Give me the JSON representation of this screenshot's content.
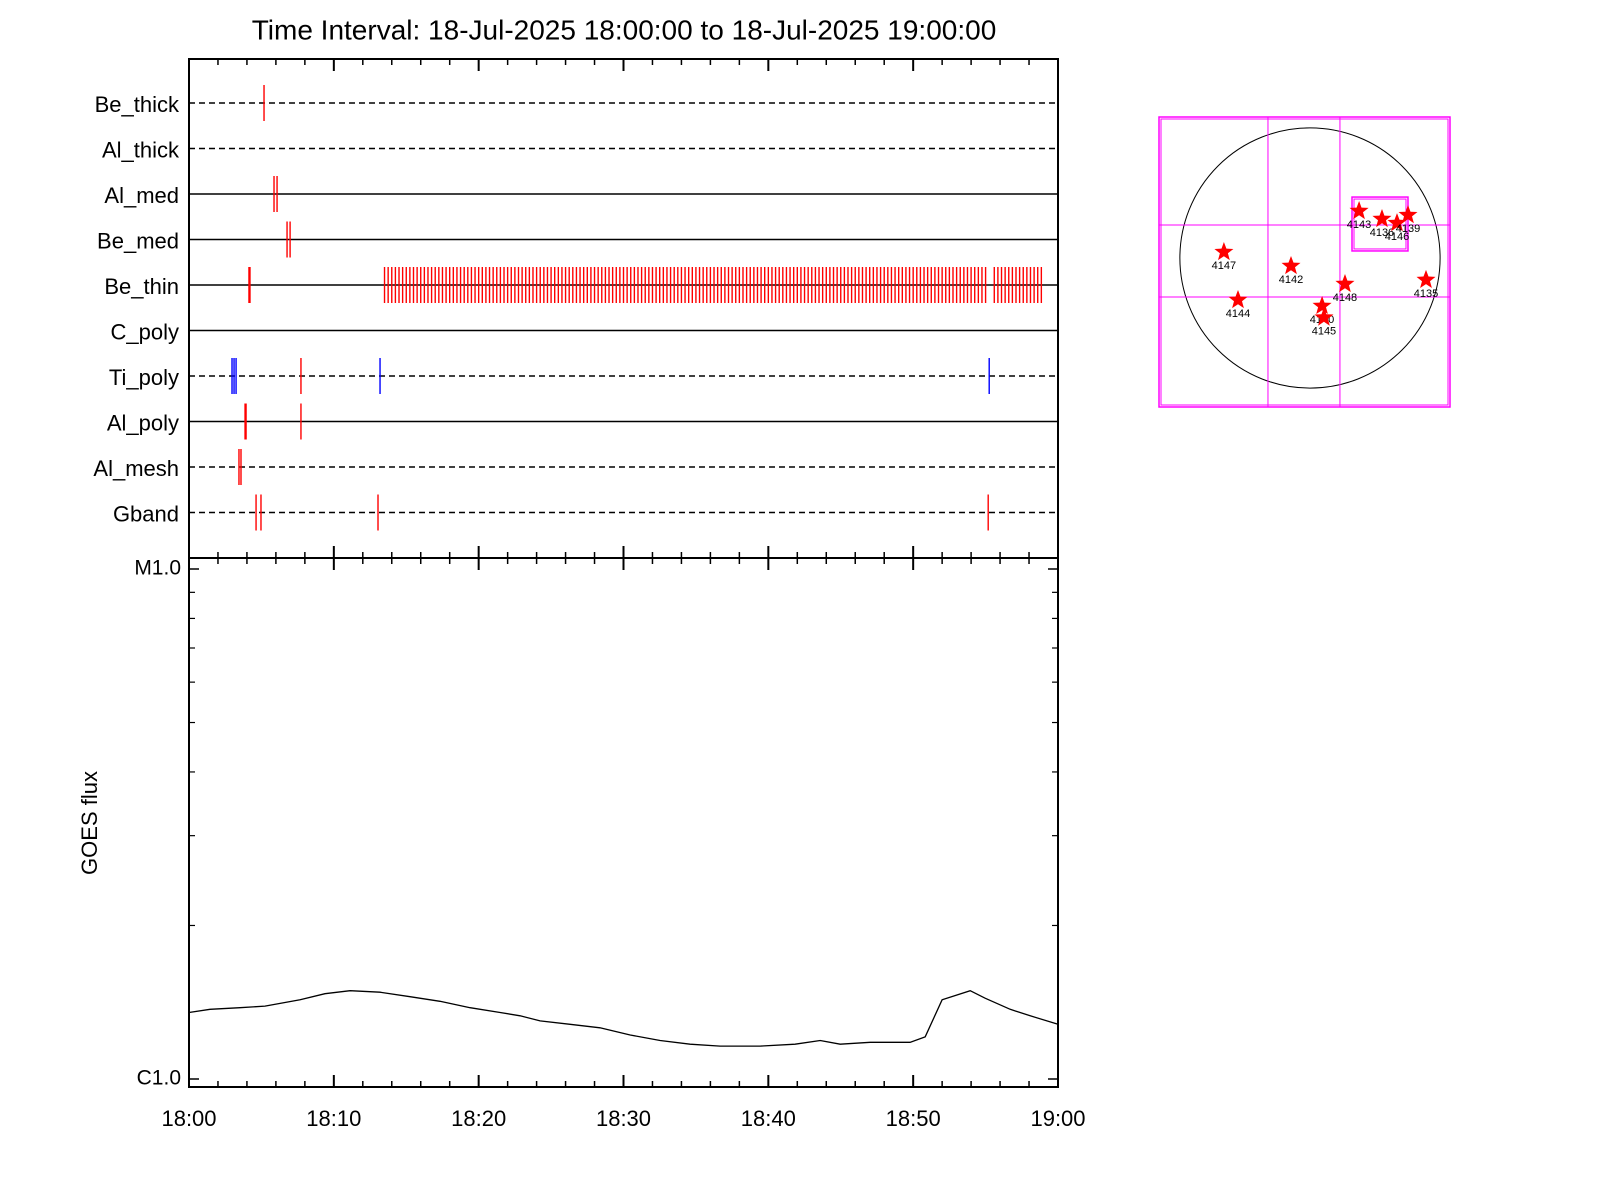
{
  "chart_data": [
    {
      "type": "timeline",
      "title": "Time Interval: 18-Jul-2025 18:00:00 to 18-Jul-2025 19:00:00",
      "xlim": [
        0,
        60
      ],
      "xticks": [
        0,
        10,
        20,
        30,
        40,
        50,
        60
      ],
      "xminorticks": [
        2,
        4,
        6,
        8,
        12,
        14,
        16,
        18,
        22,
        24,
        26,
        28,
        32,
        34,
        36,
        38,
        42,
        44,
        46,
        48,
        52,
        54,
        56,
        58
      ],
      "rows": [
        {
          "name": "Be_thick",
          "line": "dashed",
          "events": [
            {
              "color": "#ff0000",
              "times": [
                5.18
              ]
            }
          ]
        },
        {
          "name": "Al_thick",
          "line": "dashed",
          "events": []
        },
        {
          "name": "Al_med",
          "line": "solid",
          "events": [
            {
              "color": "#ff0000",
              "times": [
                5.87,
                6.08
              ]
            }
          ]
        },
        {
          "name": "Be_med",
          "line": "solid",
          "events": [
            {
              "color": "#ff0000",
              "times": [
                6.77,
                6.98
              ]
            }
          ]
        },
        {
          "name": "Be_thin",
          "line": "solid",
          "events": [
            {
              "color": "#ff0000",
              "times": [
                4.14,
                4.21,
                13.5,
                13.75,
                14,
                14.25,
                14.5,
                14.75,
                15,
                15.25,
                15.5,
                15.75,
                16,
                16.25,
                16.5,
                16.75,
                17,
                17.25,
                17.5,
                17.75,
                18,
                18.25,
                18.5,
                18.75,
                19,
                19.25,
                19.5,
                19.75,
                20,
                20.25,
                20.5,
                20.75,
                21,
                21.25,
                21.5,
                21.75,
                22,
                22.25,
                22.5,
                22.75,
                23,
                23.25,
                23.5,
                23.75,
                24,
                24.25,
                24.5,
                24.75,
                25,
                25.25,
                25.5,
                25.75,
                26,
                26.25,
                26.5,
                26.75,
                27,
                27.25,
                27.5,
                27.75,
                28,
                28.25,
                28.5,
                28.75,
                29,
                29.25,
                29.5,
                29.75,
                30,
                30.25,
                30.5,
                30.75,
                31,
                31.25,
                31.5,
                31.75,
                32,
                32.25,
                32.5,
                32.75,
                33,
                33.25,
                33.5,
                33.75,
                34,
                34.25,
                34.5,
                34.75,
                35,
                35.25,
                35.5,
                35.75,
                36,
                36.25,
                36.5,
                36.75,
                37,
                37.25,
                37.5,
                37.75,
                38,
                38.25,
                38.5,
                38.75,
                39,
                39.25,
                39.5,
                39.75,
                40,
                40.25,
                40.5,
                40.75,
                41,
                41.25,
                41.5,
                41.75,
                42,
                42.25,
                42.5,
                42.75,
                43,
                43.25,
                43.5,
                43.75,
                44,
                44.25,
                44.5,
                44.75,
                45,
                45.25,
                45.5,
                45.75,
                46,
                46.25,
                46.5,
                46.75,
                47,
                47.25,
                47.5,
                47.75,
                48,
                48.25,
                48.5,
                48.75,
                49,
                49.25,
                49.5,
                49.75,
                50,
                50.25,
                50.5,
                50.75,
                51,
                51.25,
                51.5,
                51.75,
                52,
                52.25,
                52.5,
                52.75,
                53,
                53.25,
                53.5,
                53.75,
                54,
                54.25,
                54.5,
                54.75,
                55,
                55.6,
                55.85,
                56.1,
                56.35,
                56.6,
                56.85,
                57.1,
                57.35,
                57.6,
                57.85,
                58.1,
                58.35,
                58.6,
                58.85
              ]
            }
          ]
        },
        {
          "name": "C_poly",
          "line": "solid",
          "events": []
        },
        {
          "name": "Ti_poly",
          "line": "dashed",
          "events": [
            {
              "color": "#0000ff",
              "times": [
                2.97,
                3.11,
                3.25,
                13.19,
                55.25
              ]
            },
            {
              "color": "#ff0000",
              "times": [
                7.73
              ]
            }
          ]
        },
        {
          "name": "Al_poly",
          "line": "solid",
          "events": [
            {
              "color": "#ff0000",
              "times": [
                3.87,
                3.94,
                7.73
              ]
            }
          ]
        },
        {
          "name": "Al_mesh",
          "line": "dashed",
          "events": [
            {
              "color": "#ff0000",
              "times": [
                3.45,
                3.59
              ]
            }
          ]
        },
        {
          "name": "Gband",
          "line": "dashed",
          "events": [
            {
              "color": "#ff0000",
              "times": [
                4.63,
                4.97,
                13.05,
                55.18
              ]
            }
          ]
        }
      ]
    },
    {
      "type": "line",
      "ylabel": "GOES flux",
      "color": "#000000",
      "yscale": "log",
      "xlim": [
        0,
        60
      ],
      "ylim": [
        1e-06,
        1e-05
      ],
      "xticks": [
        {
          "value": 0,
          "label": "18:00"
        },
        {
          "value": 10,
          "label": "18:10"
        },
        {
          "value": 20,
          "label": "18:20"
        },
        {
          "value": 30,
          "label": "18:30"
        },
        {
          "value": 40,
          "label": "18:40"
        },
        {
          "value": 50,
          "label": "18:50"
        },
        {
          "value": 60,
          "label": "19:00"
        }
      ],
      "xminorticks": [
        2,
        4,
        6,
        8,
        12,
        14,
        16,
        18,
        22,
        24,
        26,
        28,
        32,
        34,
        36,
        38,
        42,
        44,
        46,
        48,
        52,
        54,
        56,
        58
      ],
      "yticks": [
        {
          "value": 1e-06,
          "label": "C1.0"
        },
        {
          "value": 1e-05,
          "label": "M1.0"
        }
      ],
      "yminorticks": [
        2e-06,
        3e-06,
        4e-06,
        5e-06,
        6e-06,
        7e-06,
        8e-06,
        9e-06
      ],
      "x": [
        0,
        1.45,
        3.52,
        5.25,
        7.67,
        9.39,
        11.12,
        13.19,
        15.26,
        17.33,
        19.41,
        21.48,
        22.86,
        24.24,
        26.31,
        28.38,
        30.46,
        32.53,
        34.6,
        36.67,
        39.43,
        41.85,
        43.58,
        44.96,
        47.03,
        48.41,
        49.79,
        50.83,
        52.0,
        53.94,
        54.97,
        56.7,
        58.08,
        60
      ],
      "values": [
        1.35e-06,
        1.37e-06,
        1.38e-06,
        1.39e-06,
        1.43e-06,
        1.47e-06,
        1.49e-06,
        1.48e-06,
        1.45e-06,
        1.42e-06,
        1.38e-06,
        1.35e-06,
        1.33e-06,
        1.3e-06,
        1.28e-06,
        1.26e-06,
        1.22e-06,
        1.19e-06,
        1.17e-06,
        1.16e-06,
        1.16e-06,
        1.17e-06,
        1.19e-06,
        1.17e-06,
        1.18e-06,
        1.18e-06,
        1.18e-06,
        1.21e-06,
        1.43e-06,
        1.49e-06,
        1.44e-06,
        1.37e-06,
        1.33e-06,
        1.28e-06
      ]
    },
    {
      "type": "map",
      "xlim": [
        -1114,
        1033
      ],
      "ylim": [
        -1100,
        1041
      ],
      "disk_radius": 960,
      "color": "#ff0000",
      "grid_color": "#ff00ff",
      "grid_x": [
        -310,
        221
      ],
      "grid_y": [
        -288,
        244
      ],
      "fov": {
        "x": [
          310,
          723
        ],
        "y": [
          52,
          450
        ]
      },
      "regions": [
        {
          "label": "4143",
          "x": 362,
          "y": 347
        },
        {
          "label": "4136",
          "x": 531,
          "y": 288
        },
        {
          "label": "4146",
          "x": 642,
          "y": 258
        },
        {
          "label": "4139",
          "x": 723,
          "y": 317
        },
        {
          "label": "4147",
          "x": -635,
          "y": 44
        },
        {
          "label": "4142",
          "x": -140,
          "y": -59
        },
        {
          "label": "4148",
          "x": 258,
          "y": -192
        },
        {
          "label": "4135",
          "x": 856,
          "y": -162
        },
        {
          "label": "4144",
          "x": -531,
          "y": -310
        },
        {
          "label": "4140",
          "x": 89,
          "y": -354
        },
        {
          "label": "4145",
          "x": 103,
          "y": -440
        }
      ]
    }
  ]
}
